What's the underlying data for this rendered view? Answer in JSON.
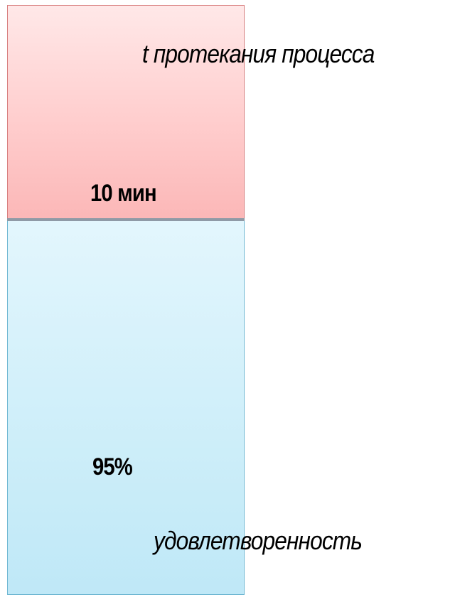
{
  "diagram": {
    "time": {
      "label": "t протекания процесса",
      "value": "10 мин",
      "color": "#ffcdcd"
    },
    "satisfaction": {
      "label": "удовлетворенность",
      "value": "95%",
      "color": "#cdeef9"
    }
  }
}
